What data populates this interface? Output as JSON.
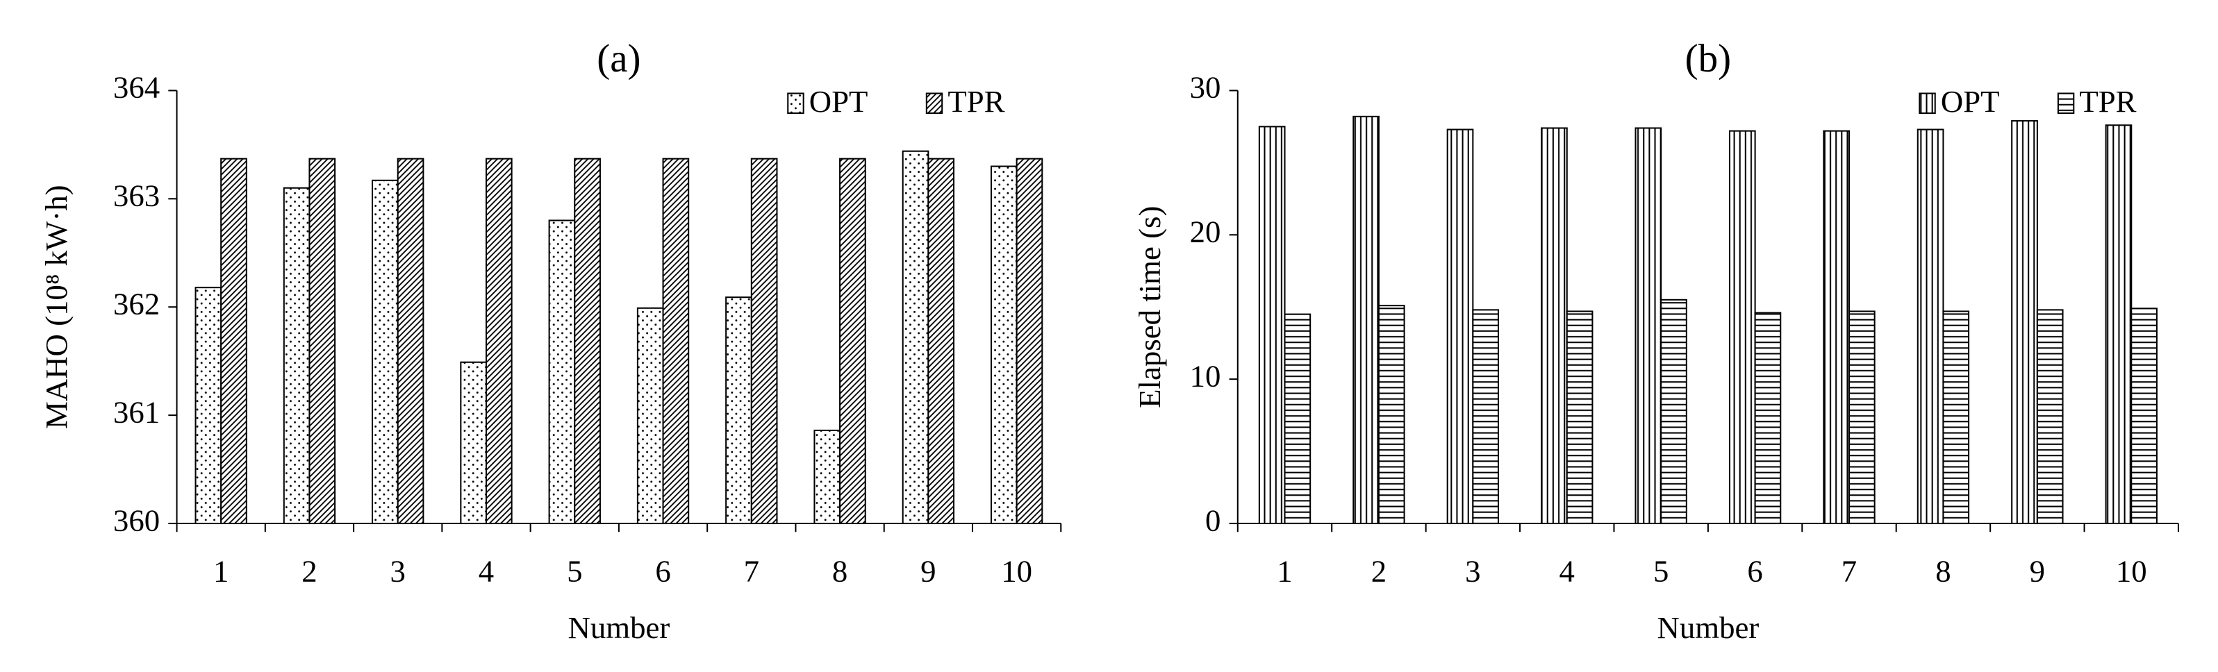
{
  "chart_data": [
    {
      "type": "bar",
      "title": "(a)",
      "xlabel": "Number",
      "ylabel": "MAHO (10⁸ kW·h)",
      "categories": [
        "1",
        "2",
        "3",
        "4",
        "5",
        "6",
        "7",
        "8",
        "9",
        "10"
      ],
      "series": [
        {
          "name": "OPT",
          "color": "#000000",
          "pattern": "dots",
          "values": [
            362.18,
            363.1,
            363.17,
            361.49,
            362.8,
            361.99,
            362.09,
            360.86,
            363.44,
            363.3
          ]
        },
        {
          "name": "TPR",
          "color": "#000000",
          "pattern": "diagonal",
          "values": [
            363.37,
            363.37,
            363.37,
            363.37,
            363.37,
            363.37,
            363.37,
            363.37,
            363.37,
            363.37
          ]
        }
      ],
      "ylim": [
        360,
        364
      ],
      "yticks": [
        360,
        361,
        362,
        363,
        364
      ],
      "grid": false,
      "legend": "upper right"
    },
    {
      "type": "bar",
      "title": "(b)",
      "xlabel": "Number",
      "ylabel": "Elapsed time (s)",
      "categories": [
        "1",
        "2",
        "3",
        "4",
        "5",
        "6",
        "7",
        "8",
        "9",
        "10"
      ],
      "series": [
        {
          "name": "OPT",
          "color": "#000000",
          "pattern": "vertical",
          "values": [
            27.5,
            28.2,
            27.3,
            27.4,
            27.4,
            27.2,
            27.2,
            27.3,
            27.9,
            27.6
          ]
        },
        {
          "name": "TPR",
          "color": "#000000",
          "pattern": "horizontal",
          "values": [
            14.5,
            15.1,
            14.8,
            14.7,
            15.5,
            14.6,
            14.7,
            14.7,
            14.8,
            14.9
          ]
        }
      ],
      "ylim": [
        0,
        30
      ],
      "yticks": [
        0,
        10,
        20,
        30
      ],
      "grid": false,
      "legend": "upper right"
    }
  ]
}
